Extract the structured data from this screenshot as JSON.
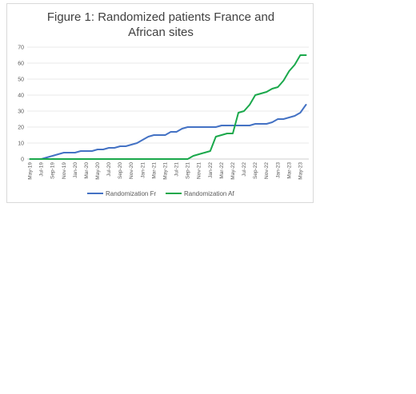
{
  "chart_data": {
    "type": "line",
    "title_line1": "Figure 1: Randomized patients France and",
    "title_line2": "African sites",
    "xlabel": "",
    "ylabel": "",
    "ylim": [
      0,
      70
    ],
    "yticks": [
      "0",
      "10",
      "20",
      "30",
      "40",
      "50",
      "60",
      "70"
    ],
    "grid": true,
    "legend_position": "bottom",
    "x": [
      "May-19",
      "Jun-19",
      "Jul-19",
      "Aug-19",
      "Sep-19",
      "Oct-19",
      "Nov-19",
      "Dec-19",
      "Jan-20",
      "Feb-20",
      "Mar-20",
      "Apr-20",
      "May-20",
      "Jun-20",
      "Jul-20",
      "Aug-20",
      "Sep-20",
      "Oct-20",
      "Nov-20",
      "Dec-20",
      "Jan-21",
      "Feb-21",
      "Mar-21",
      "Apr-21",
      "May-21",
      "Jun-21",
      "Jul-21",
      "Aug-21",
      "Sep-21",
      "Oct-21",
      "Nov-21",
      "Dec-21",
      "Jan-22",
      "Feb-22",
      "Mar-22",
      "Apr-22",
      "May-22",
      "Jun-22",
      "Jul-22",
      "Aug-22",
      "Sep-22",
      "Oct-22",
      "Nov-22",
      "Dec-22",
      "Jan-23",
      "Feb-23",
      "Mar-23",
      "Apr-23",
      "May-23",
      "Jun-23"
    ],
    "tick_labels": [
      "May-19",
      "Jul-19",
      "Sep-19",
      "Nov-19",
      "Jan-20",
      "Mar-20",
      "May-20",
      "Jul-20",
      "Sep-20",
      "Nov-20",
      "Jan-21",
      "Mar-21",
      "May-21",
      "Jul-21",
      "Sep-21",
      "Nov-21",
      "Jan-22",
      "Mar-22",
      "May-22",
      "Jul-22",
      "Sep-22",
      "Nov-22",
      "Jan-23",
      "Mar-23",
      "May-23"
    ],
    "series": [
      {
        "name": "Randomization Fr",
        "color": "#4472c4",
        "values": [
          0,
          0,
          0,
          1,
          2,
          3,
          4,
          4,
          4,
          5,
          5,
          5,
          6,
          6,
          7,
          7,
          8,
          8,
          9,
          10,
          12,
          14,
          15,
          15,
          15,
          17,
          17,
          19,
          20,
          20,
          20,
          20,
          20,
          20,
          21,
          21,
          21,
          21,
          21,
          21,
          22,
          22,
          22,
          23,
          25,
          25,
          26,
          27,
          29,
          34
        ]
      },
      {
        "name": "Randomization Af",
        "color": "#1aa84b",
        "values": [
          0,
          0,
          0,
          0,
          0,
          0,
          0,
          0,
          0,
          0,
          0,
          0,
          0,
          0,
          0,
          0,
          0,
          0,
          0,
          0,
          0,
          0,
          0,
          0,
          0,
          0,
          0,
          0,
          0,
          2,
          3,
          4,
          5,
          14,
          15,
          16,
          16,
          29,
          30,
          34,
          40,
          41,
          42,
          44,
          45,
          49,
          55,
          59,
          65,
          65
        ]
      }
    ]
  }
}
